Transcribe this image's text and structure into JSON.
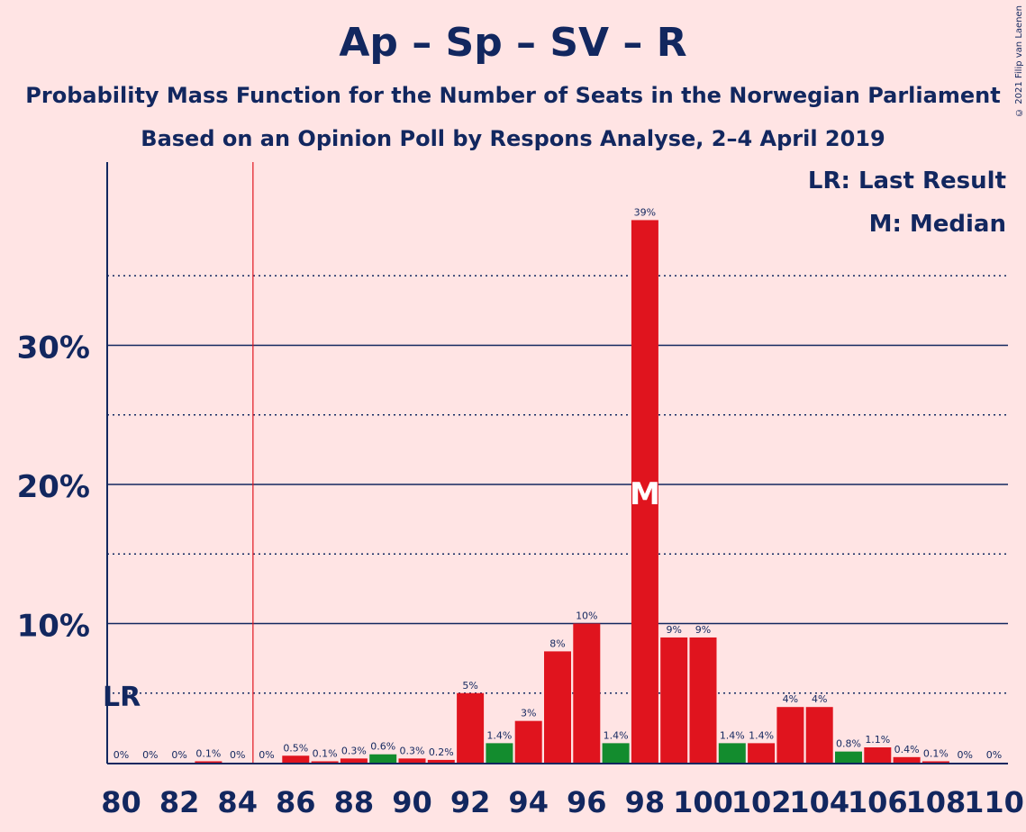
{
  "title": "Ap – Sp – SV – R",
  "subtitle": "Probability Mass Function for the Number of Seats in the Norwegian Parliament",
  "subtitle2": "Based on an Opinion Poll by Respons Analyse, 2–4 April 2019",
  "copyright": "© 2021 Filip van Laenen",
  "legend": {
    "last_result": "LR: Last Result",
    "median": "M: Median"
  },
  "colors": {
    "background": "#FFE4E4",
    "text": "#12275F",
    "red": "#E0141E",
    "green": "#138C2E",
    "last_result_line": "#E0141E"
  },
  "chart_data": {
    "type": "bar",
    "xlabel": "",
    "ylabel": "",
    "ylim": [
      0,
      43
    ],
    "yticks": [
      10,
      20,
      30
    ],
    "ytick_labels": [
      "10%",
      "20%",
      "30%"
    ],
    "grid_dotted": [
      5,
      15,
      25,
      35
    ],
    "grid_solid": [
      10,
      20,
      30
    ],
    "x_tick_labels": [
      "80",
      "82",
      "84",
      "86",
      "88",
      "90",
      "92",
      "94",
      "96",
      "98",
      "100",
      "102",
      "104",
      "106",
      "108",
      "110"
    ],
    "last_result": 85,
    "last_result_label": "LR",
    "median": 98,
    "median_label": "M",
    "x": [
      80,
      81,
      82,
      83,
      84,
      85,
      86,
      87,
      88,
      89,
      90,
      91,
      92,
      93,
      94,
      95,
      96,
      97,
      98,
      99,
      100,
      101,
      102,
      103,
      104,
      105,
      106,
      107,
      108,
      109,
      110
    ],
    "values": [
      0,
      0,
      0,
      0.1,
      0,
      0,
      0.5,
      0.1,
      0.3,
      0.6,
      0.3,
      0.2,
      5,
      1.4,
      3,
      8,
      10,
      1.4,
      39,
      9,
      9,
      1.4,
      1.4,
      4,
      4,
      0.8,
      1.1,
      0.4,
      0.1,
      0,
      0
    ],
    "bar_labels": [
      "0%",
      "0%",
      "0%",
      "0.1%",
      "0%",
      "0%",
      "0.5%",
      "0.1%",
      "0.3%",
      "0.6%",
      "0.3%",
      "0.2%",
      "5%",
      "1.4%",
      "3%",
      "8%",
      "10%",
      "1.4%",
      "39%",
      "9%",
      "9%",
      "1.4%",
      "1.4%",
      "4%",
      "4%",
      "0.8%",
      "1.1%",
      "0.4%",
      "0.1%",
      "0%",
      "0%"
    ],
    "bar_colors": [
      "red",
      "red",
      "red",
      "red",
      "red",
      "red",
      "red",
      "red",
      "red",
      "green",
      "red",
      "red",
      "red",
      "green",
      "red",
      "red",
      "red",
      "green",
      "red",
      "red",
      "red",
      "green",
      "red",
      "red",
      "red",
      "green",
      "red",
      "red",
      "red",
      "red",
      "red"
    ]
  }
}
